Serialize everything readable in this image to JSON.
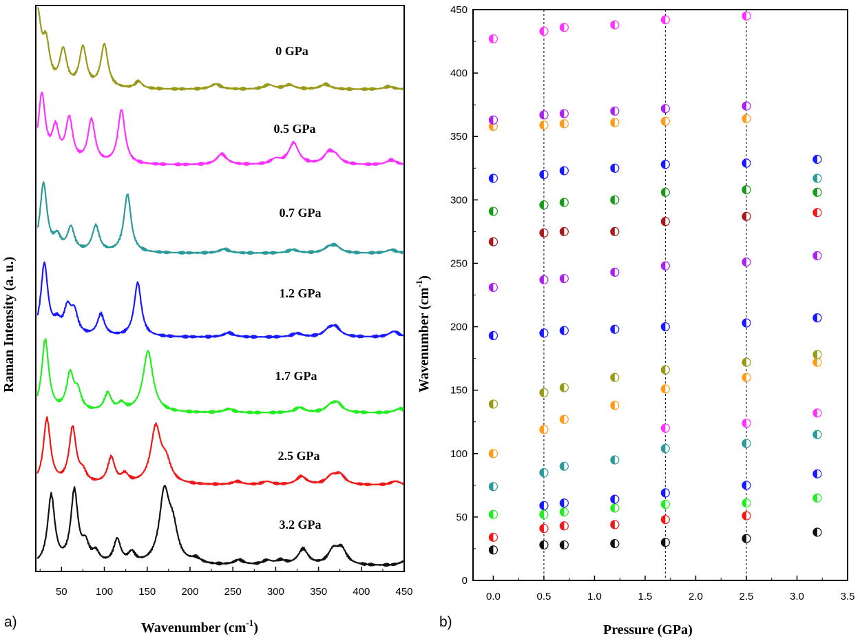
{
  "chart_data": [
    {
      "panel_label": "a)",
      "type": "line",
      "title": "",
      "xlabel": "Wavenumber (cm",
      "xlabel_sup": "-1",
      "xlabel_end": ")",
      "ylabel": "Raman Intensity (a. u.)",
      "xlim": [
        20,
        450
      ],
      "xticks": [
        50,
        100,
        150,
        200,
        250,
        300,
        350,
        400,
        450
      ],
      "series": [
        {
          "name": "0 GPa",
          "color": "#9a9a1a",
          "peaks": [
            [
              22,
              1.0
            ],
            [
              32,
              0.55
            ],
            [
              52,
              0.5
            ],
            [
              75,
              0.55
            ],
            [
              100,
              0.6
            ],
            [
              140,
              0.1
            ],
            [
              230,
              0.07
            ],
            [
              292,
              0.06
            ],
            [
              316,
              0.06
            ],
            [
              358,
              0.07
            ],
            [
              432,
              0.04
            ]
          ]
        },
        {
          "name": "0.5 GPa",
          "color": "#ff33ff",
          "peaks": [
            [
              27,
              0.95
            ],
            [
              43,
              0.45
            ],
            [
              59,
              0.6
            ],
            [
              85,
              0.6
            ],
            [
              120,
              0.75
            ],
            [
              237,
              0.15
            ],
            [
              300,
              0.07
            ],
            [
              321,
              0.3
            ],
            [
              362,
              0.15
            ],
            [
              370,
              0.1
            ],
            [
              435,
              0.07
            ]
          ]
        },
        {
          "name": "0.7 GPa",
          "color": "#2a9a9a",
          "peaks": [
            [
              29,
              1.0
            ],
            [
              45,
              0.2
            ],
            [
              61,
              0.35
            ],
            [
              90,
              0.38
            ],
            [
              127,
              0.85
            ],
            [
              240,
              0.06
            ],
            [
              320,
              0.05
            ],
            [
              362,
              0.07
            ],
            [
              370,
              0.09
            ],
            [
              435,
              0.05
            ]
          ]
        },
        {
          "name": "1.2 GPa",
          "color": "#1a1aff",
          "peaks": [
            [
              30,
              1.0
            ],
            [
              45,
              0.15
            ],
            [
              57,
              0.35
            ],
            [
              65,
              0.3
            ],
            [
              96,
              0.3
            ],
            [
              139,
              0.75
            ],
            [
              245,
              0.06
            ],
            [
              325,
              0.05
            ],
            [
              362,
              0.09
            ],
            [
              370,
              0.12
            ],
            [
              438,
              0.08
            ]
          ]
        },
        {
          "name": "1.7 GPa",
          "color": "#22ee22",
          "peaks": [
            [
              31,
              1.0
            ],
            [
              60,
              0.5
            ],
            [
              69,
              0.25
            ],
            [
              104,
              0.25
            ],
            [
              120,
              0.1
            ],
            [
              151,
              0.85
            ],
            [
              245,
              0.05
            ],
            [
              328,
              0.07
            ],
            [
              364,
              0.08
            ],
            [
              372,
              0.12
            ],
            [
              445,
              0.06
            ]
          ]
        },
        {
          "name": "2.5 GPa",
          "color": "#ee1a1a",
          "peaks": [
            [
              33,
              1.0
            ],
            [
              63,
              0.85
            ],
            [
              75,
              0.15
            ],
            [
              108,
              0.4
            ],
            [
              124,
              0.13
            ],
            [
              160,
              0.85
            ],
            [
              172,
              0.3
            ],
            [
              255,
              0.05
            ],
            [
              290,
              0.05
            ],
            [
              330,
              0.13
            ],
            [
              365,
              0.12
            ],
            [
              375,
              0.15
            ],
            [
              440,
              0.06
            ]
          ]
        },
        {
          "name": "3.2 GPa",
          "color": "#111111",
          "peaks": [
            [
              38,
              1.0
            ],
            [
              65,
              1.05
            ],
            [
              78,
              0.25
            ],
            [
              90,
              0.15
            ],
            [
              115,
              0.35
            ],
            [
              132,
              0.15
            ],
            [
              170,
              1.0
            ],
            [
              180,
              0.45
            ],
            [
              207,
              0.07
            ],
            [
              257,
              0.07
            ],
            [
              290,
              0.06
            ],
            [
              306,
              0.06
            ],
            [
              332,
              0.23
            ],
            [
              367,
              0.2
            ],
            [
              377,
              0.22
            ],
            [
              450,
              0.06
            ]
          ]
        }
      ]
    },
    {
      "panel_label": "b)",
      "type": "scatter",
      "title": "",
      "xlabel": "Pressure (GPa)",
      "ylabel": "Wavenumber (cm",
      "ylabel_sup": "-1",
      "ylabel_end": ")",
      "xlim": [
        -0.2,
        3.5
      ],
      "ylim": [
        0,
        450
      ],
      "xticks": [
        "0.0",
        "0.5",
        "1.0",
        "1.5",
        "2.0",
        "2.5",
        "3.0",
        "3.5"
      ],
      "yticks": [
        "0",
        "50",
        "100",
        "150",
        "200",
        "250",
        "300",
        "350",
        "400",
        "450"
      ],
      "dashed_lines_x": [
        0.5,
        1.7,
        2.5
      ],
      "series": [
        {
          "name": "black",
          "color": "#111111",
          "x": [
            0,
            0.5,
            0.7,
            1.2,
            1.7,
            2.5,
            3.2
          ],
          "y": [
            24,
            28,
            28,
            29,
            30,
            33,
            38
          ]
        },
        {
          "name": "red",
          "color": "#ee1a1a",
          "x": [
            0,
            0.5,
            0.7,
            1.2,
            1.7,
            2.5,
            3.2
          ],
          "y": [
            34,
            41,
            43,
            44,
            48,
            51,
            290
          ]
        },
        {
          "name": "green",
          "color": "#22ee22",
          "x": [
            0,
            0.5,
            0.7,
            1.2,
            1.7,
            2.5,
            3.2
          ],
          "y": [
            52,
            52,
            54,
            57,
            60,
            61,
            65
          ]
        },
        {
          "name": "blue",
          "color": "#1a1aff",
          "x": [
            0.5,
            0.7,
            1.2,
            1.7,
            2.5,
            3.2
          ],
          "y": [
            59,
            61,
            64,
            69,
            75,
            84
          ]
        },
        {
          "name": "teal",
          "color": "#2a9a9a",
          "x": [
            0,
            0.5,
            0.7,
            1.2,
            1.7,
            2.5,
            3.2
          ],
          "y": [
            74,
            85,
            90,
            95,
            104,
            108,
            115
          ]
        },
        {
          "name": "magenta",
          "color": "#ff33ff",
          "x": [
            1.7,
            2.5,
            3.2
          ],
          "y": [
            120,
            124,
            132
          ]
        },
        {
          "name": "orange",
          "color": "#ff9a1a",
          "x": [
            0,
            0.5,
            0.7,
            1.2,
            1.7,
            2.5,
            3.2
          ],
          "y": [
            100,
            119,
            127,
            138,
            151,
            160,
            172
          ]
        },
        {
          "name": "olive",
          "color": "#9a9a1a",
          "x": [
            0,
            0.5,
            0.7,
            1.2,
            1.7,
            2.5,
            3.2
          ],
          "y": [
            139,
            148,
            152,
            160,
            166,
            172,
            178
          ]
        },
        {
          "name": "blue-2",
          "color": "#1a1aff",
          "x": [
            0,
            0.5,
            0.7,
            1.2,
            1.7,
            2.5,
            3.2
          ],
          "y": [
            193,
            195,
            197,
            198,
            200,
            203,
            207
          ]
        },
        {
          "name": "purple",
          "color": "#aa22ee",
          "x": [
            0,
            0.5,
            0.7,
            1.2,
            1.7,
            2.5,
            3.2
          ],
          "y": [
            231,
            237,
            238,
            243,
            248,
            251,
            256
          ]
        },
        {
          "name": "darkred",
          "color": "#aa1a1a",
          "x": [
            0,
            0.5,
            0.7,
            1.2,
            1.7,
            2.5
          ],
          "y": [
            267,
            274,
            275,
            275,
            283,
            287
          ]
        },
        {
          "name": "green-2",
          "color": "#1a9a1a",
          "x": [
            0,
            0.5,
            0.7,
            1.2,
            1.7,
            2.5,
            3.2
          ],
          "y": [
            291,
            296,
            298,
            300,
            306,
            308,
            306
          ]
        },
        {
          "name": "blue-3",
          "color": "#1a1aff",
          "x": [
            0,
            0.5,
            0.7,
            1.2,
            1.7,
            2.5,
            3.2
          ],
          "y": [
            317,
            320,
            323,
            325,
            328,
            329,
            332
          ]
        },
        {
          "name": "teal-2",
          "color": "#2a9a9a",
          "x": [
            3.2
          ],
          "y": [
            317
          ]
        },
        {
          "name": "orange-2",
          "color": "#ff9a1a",
          "x": [
            0,
            0.5,
            0.7,
            1.2,
            1.7,
            2.5
          ],
          "y": [
            358,
            359,
            360,
            361,
            362,
            364
          ]
        },
        {
          "name": "purple-2",
          "color": "#aa22ee",
          "x": [
            0,
            0.5,
            0.7,
            1.2,
            1.7,
            2.5
          ],
          "y": [
            363,
            367,
            368,
            370,
            372,
            374
          ]
        },
        {
          "name": "magenta-2",
          "color": "#ff33ff",
          "x": [
            0,
            0.5,
            0.7,
            1.2,
            1.7,
            2.5
          ],
          "y": [
            427,
            433,
            436,
            438,
            442,
            445
          ]
        }
      ]
    }
  ]
}
